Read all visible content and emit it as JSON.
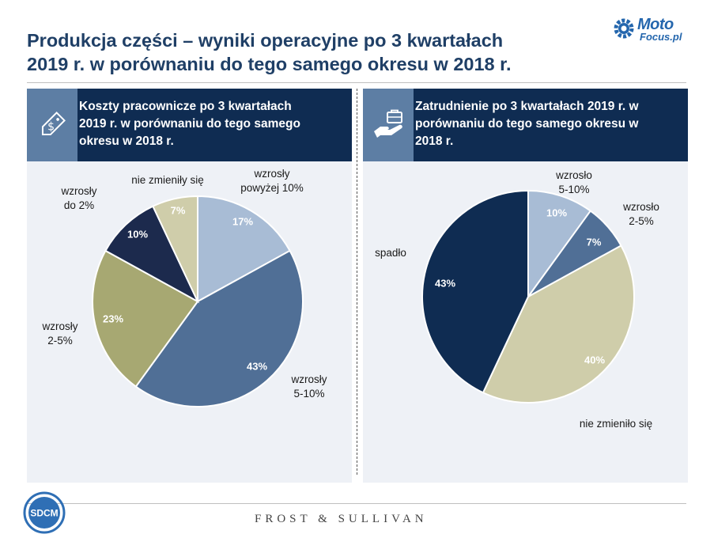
{
  "title_line1": "Produkcja części – wyniki operacyjne po 3 kwartałach",
  "title_line2": "2019 r. w porównaniu do tego samego okresu w 2018 r.",
  "logo": {
    "word1": "Moto",
    "word2": "Focus.pl"
  },
  "left_panel": {
    "header_line1": "Koszty pracownicze po 3 kwartałach",
    "header_line2": "2019 r. w porównaniu do tego samego",
    "header_line3": "okresu w 2018 r.",
    "icon": "price-tag-dollar-icon"
  },
  "right_panel": {
    "header_line1": "Zatrudnienie po 3 kwartałach 2019 r. w",
    "header_line2": "porównaniu do tego samego okresu w",
    "header_line3": "2018 r.",
    "icon": "hand-briefcase-icon"
  },
  "footer": {
    "frost": "FROST & SULLIVAN",
    "sdcm": "SDCM"
  },
  "chart_data": [
    {
      "type": "pie",
      "title": "Koszty pracownicze po 3 kwartałach 2019 r. w porównaniu do tego samego okresu w 2018 r.",
      "slices": [
        {
          "name_lines": [
            "wzrosły",
            "powyżej 10%"
          ],
          "value": 17,
          "label": "17%",
          "color": "#a8bcd5"
        },
        {
          "name_lines": [
            "wzrosły",
            "5-10%"
          ],
          "value": 43,
          "label": "43%",
          "color": "#506f96"
        },
        {
          "name_lines": [
            "wzrosły",
            "2-5%"
          ],
          "value": 23,
          "label": "23%",
          "color": "#a7a872"
        },
        {
          "name_lines": [
            "wzrosły",
            "do 2%"
          ],
          "value": 10,
          "label": "10%",
          "color": "#1c2a4d"
        },
        {
          "name_lines": [
            "nie zmieniły się"
          ],
          "value": 7,
          "label": "7%",
          "color": "#cfcdaa"
        }
      ]
    },
    {
      "type": "pie",
      "title": "Zatrudnienie po 3 kwartałach 2019 r. w porównaniu do tego samego okresu w 2018 r.",
      "slices": [
        {
          "name_lines": [
            "wzrosło",
            "5-10%"
          ],
          "value": 10,
          "label": "10%",
          "color": "#a8bcd5"
        },
        {
          "name_lines": [
            "wzrosło",
            "2-5%"
          ],
          "value": 7,
          "label": "7%",
          "color": "#506f96"
        },
        {
          "name_lines": [
            "nie zmieniło się"
          ],
          "value": 40,
          "label": "40%",
          "color": "#cfcdaa"
        },
        {
          "name_lines": [
            "spadło"
          ],
          "value": 43,
          "label": "43%",
          "color": "#0f2c52"
        }
      ]
    }
  ]
}
